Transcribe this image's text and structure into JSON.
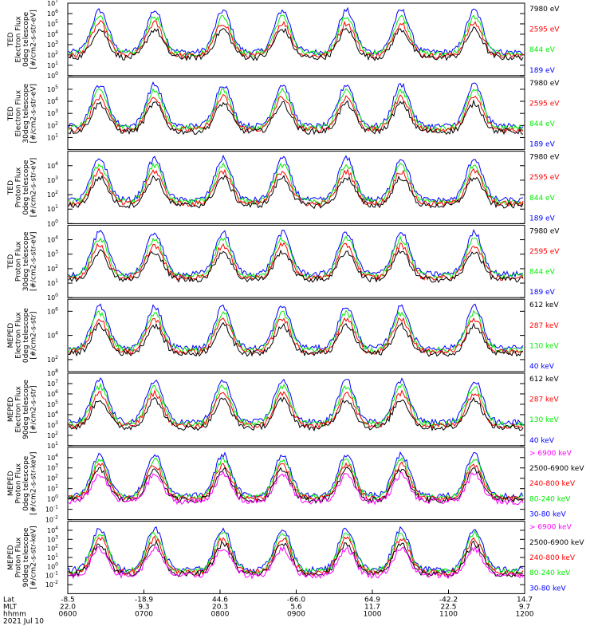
{
  "colors": {
    "black": "#000000",
    "red": "#ff0000",
    "green": "#00ee00",
    "blue": "#0000ff",
    "magenta": "#ff00ff"
  },
  "chart_data": {
    "type": "line",
    "title": "",
    "date": "2021 Jul 10",
    "x_axis": {
      "row_labels": [
        "Lat",
        "MLT",
        "hhmm"
      ],
      "ticks": [
        {
          "hhmm": "0600",
          "mlt": "22.0",
          "lat": "-8.5"
        },
        {
          "hhmm": "0700",
          "mlt": "9.3",
          "lat": "-18.9"
        },
        {
          "hhmm": "0800",
          "mlt": "20.3",
          "lat": "44.6"
        },
        {
          "hhmm": "0900",
          "mlt": "5.6",
          "lat": "-66.0"
        },
        {
          "hhmm": "1000",
          "mlt": "11.7",
          "lat": "64.9"
        },
        {
          "hhmm": "1100",
          "mlt": "22.5",
          "lat": "-42.2"
        },
        {
          "hhmm": "1200",
          "mlt": "9.7",
          "lat": "14.7"
        }
      ]
    },
    "panels": [
      {
        "ylabel_lines": [
          "TED",
          "Electron Flux",
          "0deg telescope",
          "[#/cm2-s-str-eV]"
        ],
        "y_log_range": [
          0,
          7
        ],
        "tick_exps": [
          0,
          1,
          2,
          3,
          4,
          5,
          6,
          7
        ],
        "series": [
          {
            "name": "7980 eV",
            "color": "black"
          },
          {
            "name": "2595 eV",
            "color": "red"
          },
          {
            "name": "844 eV",
            "color": "green"
          },
          {
            "name": "189 eV",
            "color": "blue"
          }
        ]
      },
      {
        "ylabel_lines": [
          "TED",
          "Electron Flux",
          "30deg telescope",
          "[#/cm2-s-str-eV]"
        ],
        "y_log_range": [
          0,
          6
        ],
        "tick_exps": [
          1,
          2,
          3,
          4,
          5
        ],
        "series": [
          {
            "name": "7980 eV",
            "color": "black"
          },
          {
            "name": "2595 eV",
            "color": "red"
          },
          {
            "name": "844 eV",
            "color": "green"
          },
          {
            "name": "189 eV",
            "color": "blue"
          }
        ]
      },
      {
        "ylabel_lines": [
          "TED",
          "Proton Flux",
          "0deg telescope",
          "[#/cm2-s-str-eV]"
        ],
        "y_log_range": [
          0,
          5
        ],
        "tick_exps": [
          0,
          1,
          2,
          3,
          4
        ],
        "series": [
          {
            "name": "7980 eV",
            "color": "black"
          },
          {
            "name": "2595 eV",
            "color": "red"
          },
          {
            "name": "844 eV",
            "color": "green"
          },
          {
            "name": "189 eV",
            "color": "blue"
          }
        ]
      },
      {
        "ylabel_lines": [
          "TED",
          "Proton Flux",
          "30deg telescope",
          "[#/cm2-s-str-eV]"
        ],
        "y_log_range": [
          0,
          5
        ],
        "tick_exps": [
          0,
          1,
          2,
          3,
          4
        ],
        "series": [
          {
            "name": "7980 eV",
            "color": "black"
          },
          {
            "name": "2595 eV",
            "color": "red"
          },
          {
            "name": "844 eV",
            "color": "green"
          },
          {
            "name": "189 eV",
            "color": "blue"
          }
        ]
      },
      {
        "ylabel_lines": [
          "MEPED",
          "Electron Flux",
          "0deg telescope",
          "[#/cm2-s-str]"
        ],
        "y_log_range": [
          1,
          7
        ],
        "tick_exps": [
          2,
          4,
          6
        ],
        "series": [
          {
            "name": "612 keV",
            "color": "black"
          },
          {
            "name": "287 keV",
            "color": "red"
          },
          {
            "name": "130 keV",
            "color": "green"
          },
          {
            "name": "40 keV",
            "color": "blue"
          }
        ]
      },
      {
        "ylabel_lines": [
          "MEPED",
          "Electron Flux",
          "90deg telescope",
          "[#/cm2-s-str]"
        ],
        "y_log_range": [
          1,
          8
        ],
        "tick_exps": [
          1,
          2,
          3,
          4,
          5,
          6,
          7,
          8
        ],
        "series": [
          {
            "name": "612 keV",
            "color": "black"
          },
          {
            "name": "287 keV",
            "color": "red"
          },
          {
            "name": "130 keV",
            "color": "green"
          },
          {
            "name": "40 keV",
            "color": "blue"
          }
        ]
      },
      {
        "ylabel_lines": [
          "MEPED",
          "Proton Flux",
          "0deg telescope",
          "[#/cm2-s-str-keV]"
        ],
        "y_log_range": [
          -2,
          5
        ],
        "tick_exps": [
          -2,
          -1,
          0,
          1,
          2,
          3,
          4
        ],
        "series": [
          {
            "name": "> 6900 keV",
            "color": "magenta"
          },
          {
            "name": "2500-6900 keV",
            "color": "black"
          },
          {
            "name": "240-800 keV",
            "color": "red"
          },
          {
            "name": "80-240 keV",
            "color": "green"
          },
          {
            "name": "30-80 keV",
            "color": "blue"
          }
        ]
      },
      {
        "ylabel_lines": [
          "MEPED",
          "Proton Flux",
          "90deg telescope",
          "[#/cm2-s-str-keV]"
        ],
        "y_log_range": [
          -3,
          5
        ],
        "tick_exps": [
          -2,
          -1,
          0,
          1,
          2,
          3,
          4
        ],
        "series": [
          {
            "name": "> 6900 keV",
            "color": "magenta"
          },
          {
            "name": "2500-6900 keV",
            "color": "black"
          },
          {
            "name": "240-800 keV",
            "color": "red"
          },
          {
            "name": "80-240 keV",
            "color": "green"
          },
          {
            "name": "30-80 keV",
            "color": "blue"
          }
        ]
      }
    ]
  }
}
